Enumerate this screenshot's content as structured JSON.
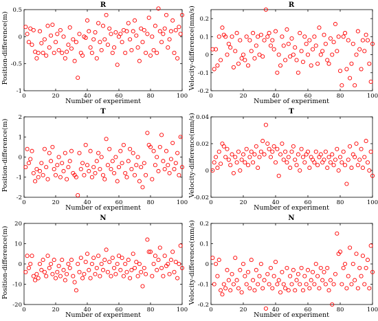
{
  "chart_data": [
    {
      "type": "scatter",
      "title": "R",
      "xlabel": "Number of experiment",
      "ylabel": "Position-difference(m)",
      "xlim": [
        0,
        100
      ],
      "ylim": [
        -1,
        0.5
      ],
      "xticks": [
        "0",
        "20",
        "40",
        "60",
        "80",
        "100"
      ],
      "yticks": [
        "-1",
        "-0.5",
        "0",
        "0.5"
      ],
      "marker_color": "#ff0000",
      "x": [
        1,
        2,
        3,
        4,
        5,
        6,
        7,
        8,
        9,
        10,
        11,
        12,
        13,
        14,
        15,
        16,
        17,
        18,
        19,
        20,
        21,
        22,
        23,
        24,
        25,
        26,
        27,
        28,
        29,
        30,
        31,
        32,
        33,
        34,
        35,
        36,
        37,
        38,
        39,
        40,
        41,
        42,
        43,
        44,
        45,
        46,
        47,
        48,
        49,
        50,
        51,
        52,
        53,
        54,
        55,
        56,
        57,
        58,
        59,
        60,
        61,
        62,
        63,
        64,
        65,
        66,
        67,
        68,
        69,
        70,
        71,
        72,
        73,
        74,
        75,
        76,
        77,
        78,
        79,
        80,
        81,
        82,
        83,
        84,
        85,
        86,
        87,
        88,
        89,
        90,
        91,
        92,
        93,
        94,
        95,
        96,
        97,
        98,
        99,
        100
      ],
      "y": [
        0.18,
        0.05,
        -0.1,
        0.15,
        -0.15,
        0.12,
        -0.28,
        -0.4,
        -0.3,
        0.1,
        -0.12,
        -0.3,
        -0.05,
        -0.35,
        0.2,
        -0.2,
        0.02,
        0.22,
        -0.3,
        -0.1,
        0.05,
        -0.25,
        0.12,
        -0.3,
        0.0,
        -0.4,
        -0.28,
        -0.15,
        0.17,
        -0.22,
        -0.05,
        -0.45,
        -0.1,
        -0.76,
        0.05,
        -0.3,
        -0.35,
        0.0,
        -0.02,
        0.3,
        0.1,
        -0.2,
        -0.3,
        -0.05,
        0.08,
        -0.4,
        0.25,
        -0.1,
        -0.25,
        0.2,
        -0.05,
        0.4,
        -0.15,
        0.15,
        0.05,
        -0.3,
        -0.2,
        0.08,
        -0.52,
        0.0,
        0.05,
        -0.1,
        0.12,
        -0.3,
        0.1,
        0.25,
        -0.05,
        -0.25,
        0.1,
        0.3,
        0.02,
        -0.2,
        -0.45,
        0.15,
        -0.1,
        0.12,
        -0.3,
        0.05,
        0.35,
        -0.35,
        0.0,
        -0.25,
        0.2,
        -0.3,
        0.52,
        0.1,
        -0.1,
        0.05,
        0.15,
        0.4,
        -0.2,
        -0.05,
        0.1,
        0.3,
        -0.3,
        0.12,
        -0.4,
        0.18,
        0.05,
        0.4
      ]
    },
    {
      "type": "scatter",
      "title": "R",
      "xlabel": "Number of experiment",
      "ylabel": "Velocity-difference(mm/s)",
      "xlim": [
        0,
        100
      ],
      "ylim": [
        -0.2,
        0.25
      ],
      "xticks": [
        "0",
        "20",
        "40",
        "60",
        "80",
        "100"
      ],
      "yticks": [
        "-0.2",
        "-0.1",
        "0",
        "0.1",
        "0.2"
      ],
      "marker_color": "#ff0000",
      "x": [
        1,
        2,
        3,
        4,
        5,
        6,
        7,
        8,
        9,
        10,
        11,
        12,
        13,
        14,
        15,
        16,
        17,
        18,
        19,
        20,
        21,
        22,
        23,
        24,
        25,
        26,
        27,
        28,
        29,
        30,
        31,
        32,
        33,
        34,
        35,
        36,
        37,
        38,
        39,
        40,
        41,
        42,
        43,
        44,
        45,
        46,
        47,
        48,
        49,
        50,
        51,
        52,
        53,
        54,
        55,
        56,
        57,
        58,
        59,
        60,
        61,
        62,
        63,
        64,
        65,
        66,
        67,
        68,
        69,
        70,
        71,
        72,
        73,
        74,
        75,
        76,
        77,
        78,
        79,
        80,
        81,
        82,
        83,
        84,
        85,
        86,
        87,
        88,
        89,
        90,
        91,
        92,
        93,
        94,
        95,
        96,
        97,
        98,
        99,
        100
      ],
      "y": [
        0.03,
        -0.08,
        0.03,
        -0.06,
        0.1,
        -0.03,
        0.15,
        0.11,
        0.1,
        0.0,
        0.06,
        0.04,
        0.1,
        -0.07,
        0.02,
        0.12,
        -0.05,
        0.08,
        -0.02,
        0.0,
        -0.03,
        0.1,
        -0.06,
        0.08,
        0.02,
        0.12,
        -0.02,
        0.05,
        0.1,
        0.0,
        0.11,
        -0.01,
        0.08,
        0.25,
        0.1,
        0.12,
        0.05,
        0.08,
        0.03,
        0.13,
        -0.1,
        0.0,
        -0.06,
        0.1,
        0.05,
        -0.03,
        0.14,
        0.06,
        -0.01,
        0.09,
        0.0,
        0.04,
        -0.03,
        -0.1,
        0.12,
        0.02,
        -0.04,
        0.1,
        0.06,
        0.0,
        0.08,
        -0.06,
        0.03,
        0.1,
        0.05,
        -0.05,
        0.15,
        0.0,
        0.02,
        0.11,
        0.06,
        -0.03,
        -0.05,
        0.09,
        0.0,
        0.07,
        0.17,
        0.02,
        0.1,
        -0.09,
        -0.17,
        0.1,
        0.12,
        -0.08,
        0.08,
        -0.13,
        -0.05,
        0.06,
        -0.17,
        0.0,
        0.13,
        0.03,
        -0.08,
        0.08,
        0.02,
        0.11,
        0.08,
        -0.05,
        -0.15,
        0.06
      ]
    },
    {
      "type": "scatter",
      "title": "T",
      "xlabel": "Number of experiment",
      "ylabel": "Position-difference(m)",
      "xlim": [
        0,
        100
      ],
      "ylim": [
        -2,
        2
      ],
      "xticks": [
        "0",
        "20",
        "40",
        "60",
        "80",
        "100"
      ],
      "yticks": [
        "-2",
        "-1",
        "0",
        "1",
        "2"
      ],
      "marker_color": "#ff0000",
      "x": [
        1,
        2,
        3,
        4,
        5,
        6,
        7,
        8,
        9,
        10,
        11,
        12,
        13,
        14,
        15,
        16,
        17,
        18,
        19,
        20,
        21,
        22,
        23,
        24,
        25,
        26,
        27,
        28,
        29,
        30,
        31,
        32,
        33,
        34,
        35,
        36,
        37,
        38,
        39,
        40,
        41,
        42,
        43,
        44,
        45,
        46,
        47,
        48,
        49,
        50,
        51,
        52,
        53,
        54,
        55,
        56,
        57,
        58,
        59,
        60,
        61,
        62,
        63,
        64,
        65,
        66,
        67,
        68,
        69,
        70,
        71,
        72,
        73,
        74,
        75,
        76,
        77,
        78,
        79,
        80,
        81,
        82,
        83,
        84,
        85,
        86,
        87,
        88,
        89,
        90,
        91,
        92,
        93,
        94,
        95,
        96,
        97,
        98,
        99,
        100
      ],
      "y": [
        -0.5,
        0.4,
        -0.3,
        -0.1,
        0.3,
        -0.8,
        -1.2,
        -0.6,
        -1.0,
        -0.7,
        -0.3,
        -0.9,
        0.4,
        -0.5,
        -1.1,
        0.2,
        -0.2,
        0.5,
        -0.6,
        -0.9,
        -0.4,
        0.0,
        -1.0,
        -0.3,
        -0.7,
        0.2,
        -1.1,
        -0.5,
        -0.2,
        0.3,
        -0.8,
        -0.9,
        -1.0,
        -1.9,
        0.2,
        -0.6,
        -0.3,
        -0.9,
        0.6,
        -0.4,
        -0.7,
        0.3,
        -1.0,
        -0.5,
        -0.8,
        -0.2,
        0.2,
        -0.6,
        0.0,
        -0.9,
        -1.1,
        0.9,
        -0.4,
        0.4,
        -0.6,
        -0.2,
        -0.8,
        0.0,
        -1.2,
        -0.5,
        0.3,
        -0.3,
        0.6,
        -0.8,
        -1.0,
        -0.2,
        0.4,
        -0.6,
        0.2,
        -0.9,
        -0.4,
        0.0,
        -1.2,
        -0.5,
        -1.5,
        -0.3,
        -0.9,
        1.2,
        0.6,
        0.5,
        -1.1,
        0.3,
        -0.4,
        0.0,
        -0.7,
        0.5,
        1.1,
        -0.2,
        -0.6,
        0.3,
        -0.4,
        -0.8,
        -0.1,
        0.7,
        -0.6,
        -0.3,
        0.2,
        -0.9,
        1.0,
        -0.5
      ]
    },
    {
      "type": "scatter",
      "title": "T",
      "xlabel": "Number of experiment",
      "ylabel": "Velocity-difference(mm/s)",
      "xlim": [
        0,
        100
      ],
      "ylim": [
        -0.02,
        0.04
      ],
      "xticks": [
        "0",
        "20",
        "40",
        "60",
        "80",
        "100"
      ],
      "yticks": [
        "-0.02",
        "0",
        "0.02",
        "0.04"
      ],
      "marker_color": "#ff0000",
      "x": [
        1,
        2,
        3,
        4,
        5,
        6,
        7,
        8,
        9,
        10,
        11,
        12,
        13,
        14,
        15,
        16,
        17,
        18,
        19,
        20,
        21,
        22,
        23,
        24,
        25,
        26,
        27,
        28,
        29,
        30,
        31,
        32,
        33,
        34,
        35,
        36,
        37,
        38,
        39,
        40,
        41,
        42,
        43,
        44,
        45,
        46,
        47,
        48,
        49,
        50,
        51,
        52,
        53,
        54,
        55,
        56,
        57,
        58,
        59,
        60,
        61,
        62,
        63,
        64,
        65,
        66,
        67,
        68,
        69,
        70,
        71,
        72,
        73,
        74,
        75,
        76,
        77,
        78,
        79,
        80,
        81,
        82,
        83,
        84,
        85,
        86,
        87,
        88,
        89,
        90,
        91,
        92,
        93,
        94,
        95,
        96,
        97,
        98,
        99,
        100
      ],
      "y": [
        0.0,
        0.006,
        0.01,
        0.002,
        0.014,
        0.005,
        0.02,
        0.018,
        0.01,
        0.016,
        0.008,
        0.004,
        0.012,
        -0.002,
        0.01,
        0.006,
        0.014,
        0.0,
        0.008,
        0.012,
        0.006,
        0.016,
        0.004,
        0.01,
        0.014,
        0.006,
        0.012,
        0.018,
        0.002,
        0.01,
        0.014,
        0.022,
        0.012,
        0.034,
        0.02,
        0.016,
        0.01,
        0.014,
        0.018,
        0.006,
        0.016,
        -0.004,
        0.012,
        0.02,
        0.008,
        0.014,
        0.006,
        0.01,
        0.002,
        0.014,
        0.018,
        0.008,
        0.004,
        0.012,
        0.0,
        0.016,
        0.01,
        0.006,
        0.012,
        0.014,
        0.002,
        0.01,
        0.008,
        0.006,
        0.014,
        0.004,
        0.01,
        0.012,
        0.006,
        0.008,
        0.014,
        0.002,
        0.01,
        0.006,
        0.012,
        0.004,
        0.008,
        0.016,
        0.0,
        0.01,
        0.006,
        0.014,
        0.004,
        -0.01,
        0.008,
        0.018,
        0.002,
        0.012,
        0.01,
        0.02,
        0.004,
        0.008,
        0.016,
        0.002,
        0.01,
        0.022,
        0.006,
        0.0,
        0.014,
        -0.004
      ]
    },
    {
      "type": "scatter",
      "title": "N",
      "xlabel": "Number of experiment",
      "ylabel": "Position-difference(m)",
      "xlim": [
        0,
        100
      ],
      "ylim": [
        -20,
        20
      ],
      "xticks": [
        "0",
        "20",
        "40",
        "60",
        "80",
        "100"
      ],
      "yticks": [
        "-20",
        "-10",
        "0",
        "10",
        "20"
      ],
      "marker_color": "#ff0000",
      "x": [
        1,
        2,
        3,
        4,
        5,
        6,
        7,
        8,
        9,
        10,
        11,
        12,
        13,
        14,
        15,
        16,
        17,
        18,
        19,
        20,
        21,
        22,
        23,
        24,
        25,
        26,
        27,
        28,
        29,
        30,
        31,
        32,
        33,
        34,
        35,
        36,
        37,
        38,
        39,
        40,
        41,
        42,
        43,
        44,
        45,
        46,
        47,
        48,
        49,
        50,
        51,
        52,
        53,
        54,
        55,
        56,
        57,
        58,
        59,
        60,
        61,
        62,
        63,
        64,
        65,
        66,
        67,
        68,
        69,
        70,
        71,
        72,
        73,
        74,
        75,
        76,
        77,
        78,
        79,
        80,
        81,
        82,
        83,
        84,
        85,
        86,
        87,
        88,
        89,
        90,
        91,
        92,
        93,
        94,
        95,
        96,
        97,
        98,
        99,
        100
      ],
      "y": [
        -4,
        4,
        -2,
        0,
        4,
        -6,
        -8,
        -5,
        -7,
        0,
        -3,
        2,
        -4,
        -6,
        4,
        -2,
        0,
        -5,
        2,
        -7,
        -4,
        -1,
        -6,
        2,
        -3,
        -8,
        -5,
        0,
        -2,
        2,
        -6,
        -9,
        -13,
        0,
        -4,
        3,
        -7,
        -5,
        1,
        5,
        -3,
        -7,
        0,
        3,
        -5,
        -2,
        4,
        -6,
        0,
        -3,
        2,
        7,
        -4,
        1,
        -6,
        3,
        -2,
        -5,
        0,
        4,
        -3,
        3,
        -6,
        0,
        -4,
        2,
        -7,
        -3,
        5,
        -2,
        1,
        -6,
        0,
        -4,
        -11,
        -2,
        -5,
        12,
        6,
        6,
        -6,
        0,
        4,
        -3,
        2,
        8,
        -2,
        -6,
        4,
        -1,
        0,
        -5,
        2,
        6,
        -4,
        1,
        -7,
        0,
        9,
        -2
      ]
    },
    {
      "type": "scatter",
      "title": "N",
      "xlabel": "Number of experiment",
      "ylabel": "Velocity-difference(mm/s)",
      "xlim": [
        0,
        100
      ],
      "ylim": [
        -0.2,
        0.2
      ],
      "xticks": [
        "0",
        "20",
        "40",
        "60",
        "80",
        "100"
      ],
      "yticks": [
        "-0.2",
        "-0.1",
        "0",
        "0.1",
        "0.2"
      ],
      "marker_color": "#ff0000",
      "x": [
        1,
        2,
        3,
        4,
        5,
        6,
        7,
        8,
        9,
        10,
        11,
        12,
        13,
        14,
        15,
        16,
        17,
        18,
        19,
        20,
        21,
        22,
        23,
        24,
        25,
        26,
        27,
        28,
        29,
        30,
        31,
        32,
        33,
        34,
        35,
        36,
        37,
        38,
        39,
        40,
        41,
        42,
        43,
        44,
        45,
        46,
        47,
        48,
        49,
        50,
        51,
        52,
        53,
        54,
        55,
        56,
        57,
        58,
        59,
        60,
        61,
        62,
        63,
        64,
        65,
        66,
        67,
        68,
        69,
        70,
        71,
        72,
        73,
        74,
        75,
        76,
        77,
        78,
        79,
        80,
        81,
        82,
        83,
        84,
        85,
        86,
        87,
        88,
        89,
        90,
        91,
        92,
        93,
        94,
        95,
        96,
        97,
        98,
        99,
        100
      ],
      "y": [
        0.03,
        -0.1,
        0.0,
        -0.06,
        0.02,
        -0.13,
        -0.15,
        -0.1,
        -0.12,
        -0.03,
        -0.08,
        -0.13,
        -0.05,
        -0.1,
        0.03,
        -0.08,
        -0.12,
        -0.03,
        -0.14,
        0.0,
        -0.06,
        -0.1,
        -0.04,
        -0.12,
        0.02,
        -0.08,
        -0.13,
        -0.03,
        -0.1,
        -0.06,
        0.0,
        -0.12,
        -0.08,
        -0.22,
        -0.05,
        -0.1,
        -0.02,
        -0.12,
        -0.06,
        0.01,
        -0.1,
        -0.08,
        -0.14,
        -0.04,
        -0.1,
        -0.12,
        -0.02,
        -0.13,
        -0.06,
        -0.1,
        -0.03,
        -0.13,
        -0.08,
        -0.05,
        -0.1,
        -0.02,
        -0.13,
        -0.06,
        -0.1,
        -0.03,
        -0.12,
        -0.08,
        -0.04,
        -0.1,
        0.0,
        -0.06,
        -0.12,
        -0.02,
        -0.08,
        -0.04,
        -0.1,
        -0.02,
        -0.13,
        -0.08,
        -0.2,
        -0.1,
        -0.05,
        0.15,
        0.05,
        0.06,
        -0.1,
        -0.02,
        0.0,
        -0.12,
        -0.06,
        0.08,
        -0.1,
        0.0,
        -0.08,
        0.05,
        -0.12,
        -0.02,
        -0.06,
        0.04,
        -0.1,
        -0.02,
        0.02,
        -0.12,
        0.09,
        -0.04
      ]
    }
  ]
}
